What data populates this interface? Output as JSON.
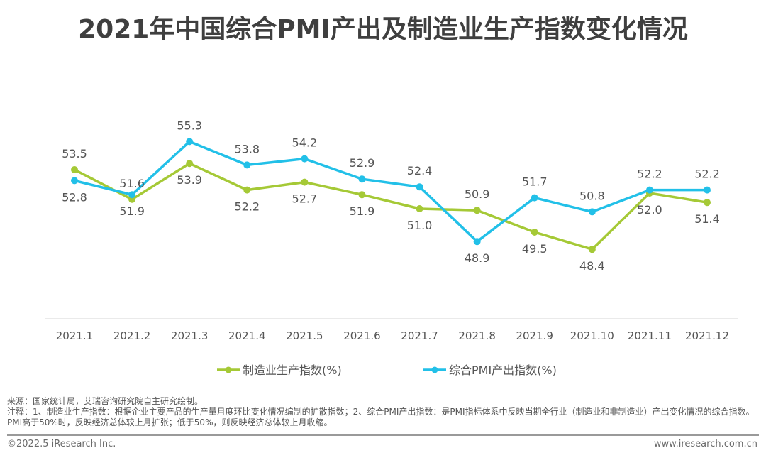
{
  "title": "2021年中国综合PMI产出及制造业生产指数变化情况",
  "chart_data": {
    "type": "line",
    "title": "2021年中国综合PMI产出及制造业生产指数变化情况",
    "categories": [
      "2021.1",
      "2021.2",
      "2021.3",
      "2021.4",
      "2021.5",
      "2021.6",
      "2021.7",
      "2021.8",
      "2021.9",
      "2021.10",
      "2021.11",
      "2021.12"
    ],
    "series": [
      {
        "name": "制造业生产指数(%)",
        "color": "#a5c936",
        "values": [
          53.5,
          51.6,
          53.9,
          52.2,
          52.7,
          51.9,
          51.0,
          50.9,
          49.5,
          48.4,
          52.0,
          51.4
        ],
        "label_positions": [
          "above",
          "above",
          "below",
          "below",
          "below",
          "below",
          "below",
          "above",
          "below",
          "below",
          "below",
          "below"
        ]
      },
      {
        "name": "综合PMI产出指数(%)",
        "color": "#22c0e8",
        "values": [
          52.8,
          51.9,
          55.3,
          53.8,
          54.2,
          52.9,
          52.4,
          48.9,
          51.7,
          50.8,
          52.2,
          52.2
        ],
        "label_positions": [
          "below",
          "below",
          "above",
          "above",
          "above",
          "above",
          "above",
          "below",
          "above",
          "above",
          "above",
          "above"
        ]
      }
    ],
    "xlabel": "",
    "ylabel": "",
    "ylim": [
      45.5,
      57.5
    ],
    "grid": false,
    "legend": "bottom-center"
  },
  "notes": {
    "source": "来源：国家统计局，艾瑞咨询研究院自主研究绘制。",
    "annotation": "注释：1、制造业生产指数：根据企业主要产品的生产量月度环比变化情况编制的扩散指数；2、综合PMI产出指数：是PMI指标体系中反映当期全行业（制造业和非制造业）产出变化情况的综合指数。PMI高于50%时，反映经济总体较上月扩张；低于50%，则反映经济总体较上月收缩。"
  },
  "footer": {
    "copyright": "©2022.5 iResearch Inc.",
    "website": "www.iresearch.com.cn"
  }
}
